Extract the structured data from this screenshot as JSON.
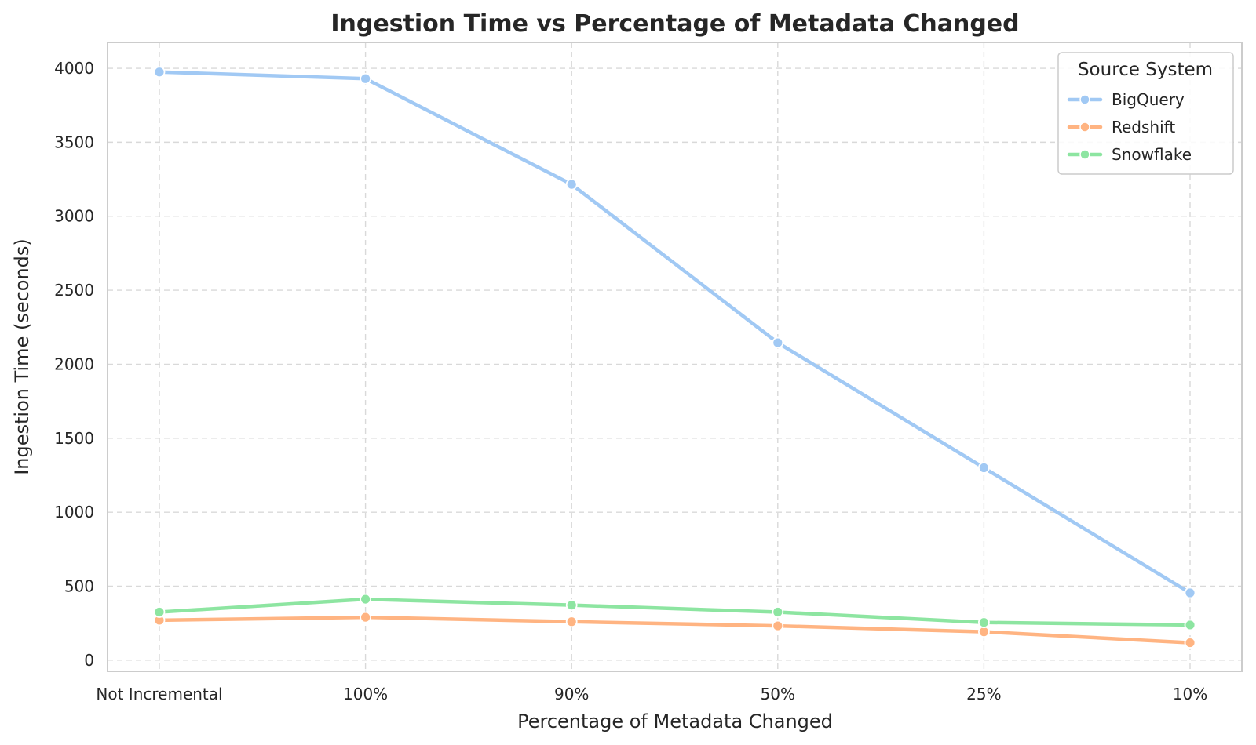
{
  "chart_data": {
    "type": "line",
    "title": "Ingestion Time vs Percentage of Metadata Changed",
    "xlabel": "Percentage of Metadata Changed",
    "ylabel": "Ingestion Time (seconds)",
    "categories": [
      "Not Incremental",
      "100%",
      "90%",
      "50%",
      "25%",
      "10%"
    ],
    "ylim": [
      -75,
      4175
    ],
    "yticks": [
      0,
      500,
      1000,
      1500,
      2000,
      2500,
      3000,
      3500,
      4000
    ],
    "grid": true,
    "legend": {
      "title": "Source System",
      "position": "top-right"
    },
    "series": [
      {
        "name": "BigQuery",
        "color": "#a1c9f4",
        "values": [
          3975,
          3930,
          3215,
          2145,
          1300,
          455
        ]
      },
      {
        "name": "Redshift",
        "color": "#ffb482",
        "values": [
          270,
          290,
          260,
          232,
          192,
          118
        ]
      },
      {
        "name": "Snowflake",
        "color": "#8de5a1",
        "values": [
          325,
          412,
          372,
          325,
          255,
          238
        ]
      }
    ]
  }
}
